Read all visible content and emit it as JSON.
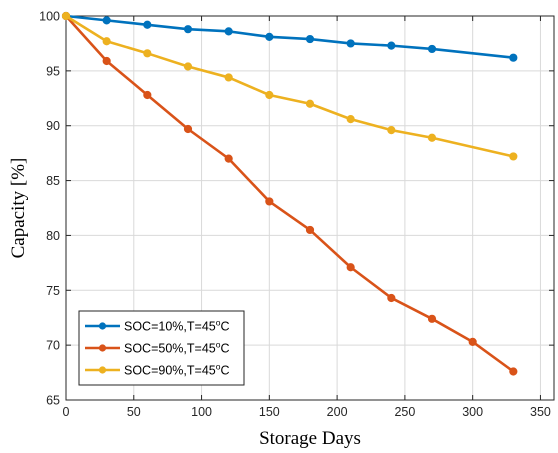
{
  "chart_data": {
    "type": "line",
    "title": "",
    "xlabel": "Storage Days",
    "ylabel": "Capacity [%]",
    "xlim": [
      0,
      360
    ],
    "ylim": [
      65,
      100
    ],
    "xticks": [
      0,
      50,
      100,
      150,
      200,
      250,
      300,
      350
    ],
    "yticks": [
      65,
      70,
      75,
      80,
      85,
      90,
      95,
      100
    ],
    "grid": true,
    "legend_position": "bottom-left",
    "x": [
      0,
      30,
      60,
      90,
      120,
      150,
      180,
      210,
      240,
      270,
      300,
      330
    ],
    "series": [
      {
        "name": "SOC=10%,T=45°C",
        "legend_main": "SOC=10%,T=45",
        "legend_sup": "o",
        "legend_tail": "C",
        "color": "#0072BD",
        "x": [
          0,
          30,
          60,
          90,
          120,
          150,
          180,
          210,
          240,
          270,
          330
        ],
        "values": [
          100,
          99.6,
          99.2,
          98.8,
          98.6,
          98.1,
          97.9,
          97.5,
          97.3,
          97.0,
          96.2
        ]
      },
      {
        "name": "SOC=50%,T=45°C",
        "legend_main": "SOC=50%,T=45",
        "legend_sup": "o",
        "legend_tail": "C",
        "color": "#D95319",
        "x": [
          0,
          30,
          60,
          90,
          120,
          150,
          180,
          210,
          240,
          270,
          300,
          330
        ],
        "values": [
          100,
          95.9,
          92.8,
          89.7,
          87.0,
          83.1,
          80.5,
          77.1,
          74.3,
          72.4,
          70.3,
          67.6
        ]
      },
      {
        "name": "SOC=90%,T=45°C",
        "legend_main": "SOC=90%,T=45",
        "legend_sup": "o",
        "legend_tail": "C",
        "color": "#EDB120",
        "x": [
          0,
          30,
          60,
          90,
          120,
          150,
          180,
          210,
          240,
          270,
          330
        ],
        "values": [
          100,
          97.7,
          96.6,
          95.4,
          94.4,
          92.8,
          92.0,
          90.6,
          89.6,
          88.9,
          87.2
        ]
      }
    ]
  }
}
